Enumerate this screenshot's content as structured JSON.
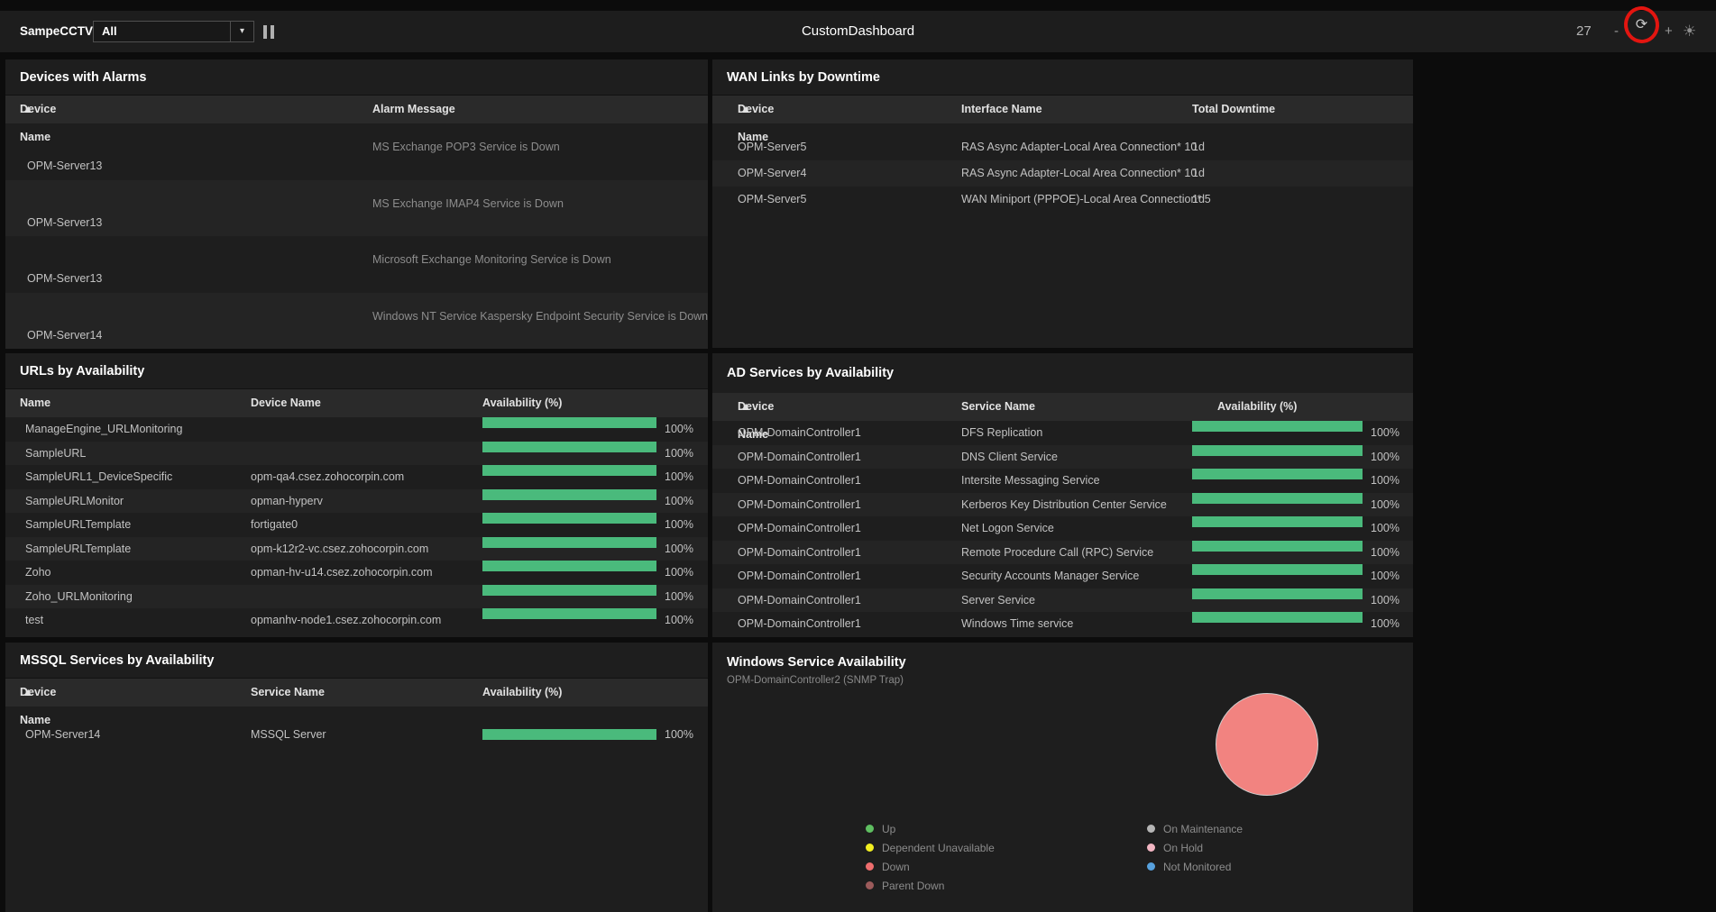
{
  "topbar": {
    "dashboard_label": "SampeCCTV",
    "filter_selected": "All",
    "title": "CustomDashboard",
    "refresh_countdown": "27",
    "zoom_out_label": "-",
    "zoom_in_label": "+"
  },
  "icons": {
    "dropdown_arrow": "▾",
    "refresh": "⟳",
    "brightness": "☀",
    "sort_asc": "▲"
  },
  "colors": {
    "page_bg": "#0c0c0c",
    "topbar_bg": "#1d1d1d",
    "panel_bg": "#1e1e1e",
    "column_header_bg": "#2a2a2a",
    "row_alt_bg": "#242424",
    "availability_bar_green": "#4aba7c",
    "annotation_circle_red": "#e31510",
    "pie_down_red": "#f28380"
  },
  "panels": {
    "devices_with_alarms": {
      "title": "Devices with Alarms",
      "columns": {
        "device": "Device Name",
        "message": "Alarm Message"
      },
      "rows": [
        {
          "device": "OPM-Server13",
          "message": "MS Exchange POP3 Service is Down"
        },
        {
          "device": "OPM-Server13",
          "message": "MS Exchange IMAP4 Service is Down"
        },
        {
          "device": "OPM-Server13",
          "message": "Microsoft Exchange Monitoring Service is Down"
        },
        {
          "device": "OPM-Server14",
          "message": "Windows NT Service Kaspersky Endpoint Security Service is Down"
        }
      ]
    },
    "wan_links": {
      "title": "WAN Links by Downtime",
      "columns": {
        "device": "Device Name",
        "interface": "Interface Name",
        "downtime": "Total Downtime"
      },
      "rows": [
        {
          "device": "OPM-Server5",
          "interface": "RAS Async Adapter-Local Area Connection* 10",
          "downtime": "1d"
        },
        {
          "device": "OPM-Server4",
          "interface": "RAS Async Adapter-Local Area Connection* 10",
          "downtime": "1d"
        },
        {
          "device": "OPM-Server5",
          "interface": "WAN Miniport (PPPOE)-Local Area Connection* 5",
          "downtime": "1d"
        }
      ]
    },
    "urls_by_availability": {
      "title": "URLs by Availability",
      "columns": {
        "name": "Name",
        "device": "Device Name",
        "availability": "Availability (%)"
      },
      "rows": [
        {
          "name": "ManageEngine_URLMonitoring",
          "device": "",
          "availability": 100,
          "availability_label": "100%"
        },
        {
          "name": "SampleURL",
          "device": "",
          "availability": 100,
          "availability_label": "100%"
        },
        {
          "name": "SampleURL1_DeviceSpecific",
          "device": "opm-qa4.csez.zohocorpin.com",
          "availability": 100,
          "availability_label": "100%"
        },
        {
          "name": "SampleURLMonitor",
          "device": "opman-hyperv",
          "availability": 100,
          "availability_label": "100%"
        },
        {
          "name": "SampleURLTemplate",
          "device": "fortigate0",
          "availability": 100,
          "availability_label": "100%"
        },
        {
          "name": "SampleURLTemplate",
          "device": "opm-k12r2-vc.csez.zohocorpin.com",
          "availability": 100,
          "availability_label": "100%"
        },
        {
          "name": "Zoho",
          "device": "opman-hv-u14.csez.zohocorpin.com",
          "availability": 100,
          "availability_label": "100%"
        },
        {
          "name": "Zoho_URLMonitoring",
          "device": "",
          "availability": 100,
          "availability_label": "100%"
        },
        {
          "name": "test",
          "device": "opmanhv-node1.csez.zohocorpin.com",
          "availability": 100,
          "availability_label": "100%"
        }
      ]
    },
    "ad_services": {
      "title": "AD Services by Availability",
      "columns": {
        "device": "Device Name",
        "service": "Service Name",
        "availability": "Availability (%)"
      },
      "rows": [
        {
          "device": "OPM-DomainController1",
          "service": "DFS Replication",
          "availability": 100,
          "availability_label": "100%"
        },
        {
          "device": "OPM-DomainController1",
          "service": "DNS Client Service",
          "availability": 100,
          "availability_label": "100%"
        },
        {
          "device": "OPM-DomainController1",
          "service": "Intersite Messaging Service",
          "availability": 100,
          "availability_label": "100%"
        },
        {
          "device": "OPM-DomainController1",
          "service": "Kerberos Key Distribution Center Service",
          "availability": 100,
          "availability_label": "100%"
        },
        {
          "device": "OPM-DomainController1",
          "service": "Net Logon Service",
          "availability": 100,
          "availability_label": "100%"
        },
        {
          "device": "OPM-DomainController1",
          "service": "Remote Procedure Call (RPC) Service",
          "availability": 100,
          "availability_label": "100%"
        },
        {
          "device": "OPM-DomainController1",
          "service": "Security Accounts Manager Service",
          "availability": 100,
          "availability_label": "100%"
        },
        {
          "device": "OPM-DomainController1",
          "service": "Server Service",
          "availability": 100,
          "availability_label": "100%"
        },
        {
          "device": "OPM-DomainController1",
          "service": "Windows Time service",
          "availability": 100,
          "availability_label": "100%"
        }
      ]
    },
    "mssql_services": {
      "title": "MSSQL Services by Availability",
      "columns": {
        "device": "Device Name",
        "service": "Service Name",
        "availability": "Availability (%)"
      },
      "rows": [
        {
          "device": "OPM-Server14",
          "service": "MSSQL Server",
          "availability": 100,
          "availability_label": "100%"
        }
      ]
    },
    "windows_service": {
      "title": "Windows Service Availability",
      "subtitle": "OPM-DomainController2 (SNMP Trap)",
      "chart_data": {
        "type": "pie",
        "title": "Windows Service Availability",
        "subtitle": "OPM-DomainController2 (SNMP Trap)",
        "slices": [
          {
            "label": "Down",
            "value": 100,
            "color": "#f28380"
          }
        ],
        "legend_position": "bottom",
        "legend_columns": [
          [
            {
              "label": "Up",
              "color": "#5fbf61"
            },
            {
              "label": "Dependent Unavailable",
              "color": "#f2ef20"
            },
            {
              "label": "Down",
              "color": "#ee6d6d"
            },
            {
              "label": "Parent Down",
              "color": "#9c5b5b"
            }
          ],
          [
            {
              "label": "On Maintenance",
              "color": "#b5b5b5"
            },
            {
              "label": "On Hold",
              "color": "#f3b6c3"
            },
            {
              "label": "Not Monitored",
              "color": "#57a1de"
            }
          ]
        ]
      }
    }
  }
}
